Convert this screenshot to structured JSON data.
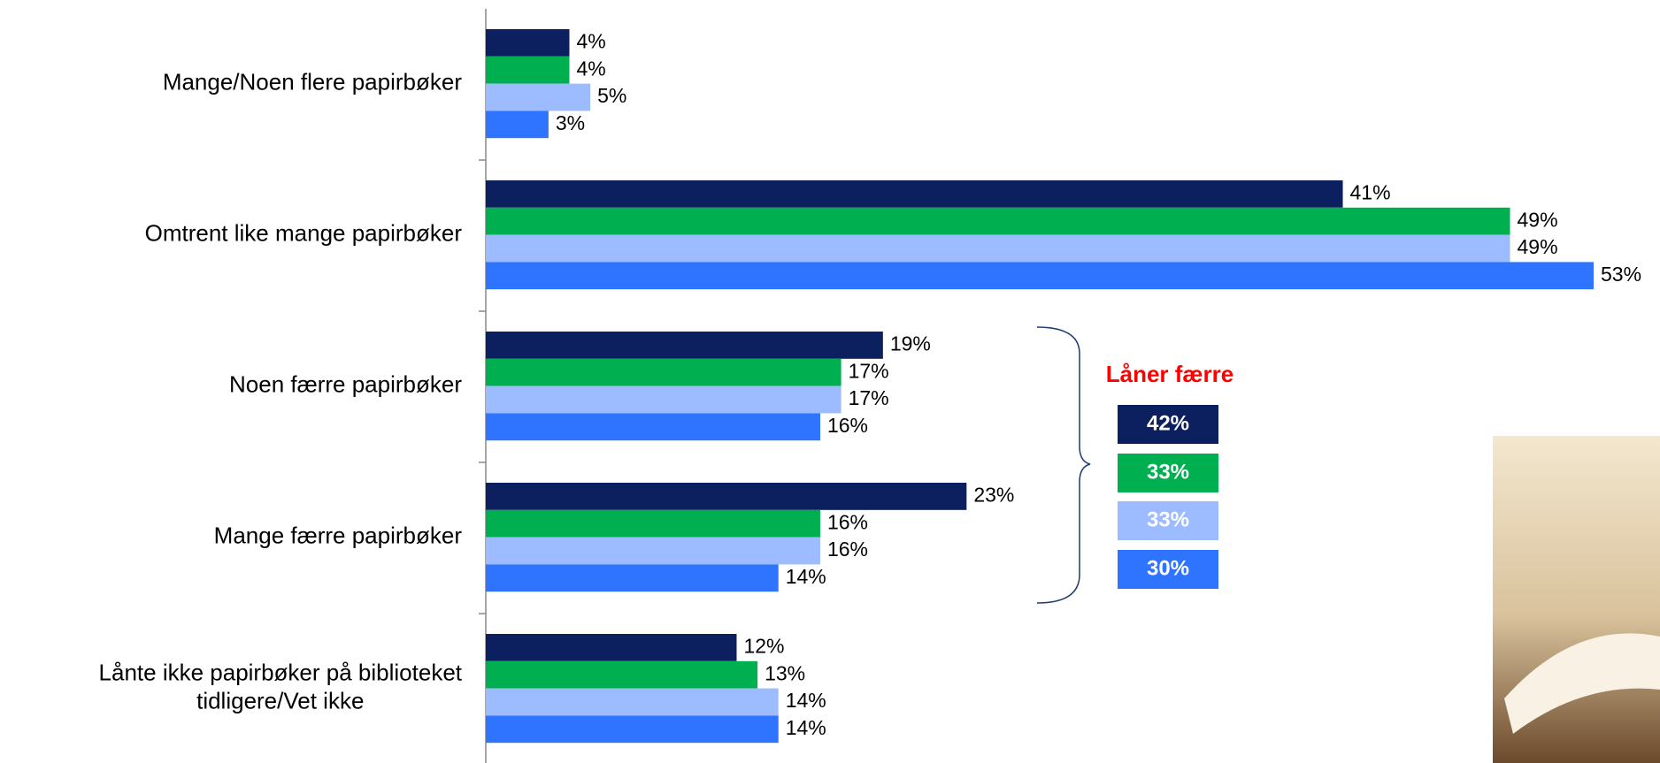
{
  "chart_data": {
    "type": "bar",
    "orientation": "horizontal",
    "categories": [
      "Mange/Noen flere papirbøker",
      "Omtrent like mange papirbøker",
      "Noen færre papirbøker",
      "Mange færre papirbøker",
      "Lånte ikke papirbøker på biblioteket\ntidligere/Vet ikke"
    ],
    "series": [
      {
        "color": "#0c1f5e",
        "values": [
          4,
          41,
          19,
          23,
          12
        ],
        "value_labels": [
          "4%",
          "41%",
          "19%",
          "23%",
          "12%"
        ]
      },
      {
        "color": "#00b050",
        "values": [
          4,
          49,
          17,
          16,
          13
        ],
        "value_labels": [
          "4%",
          "49%",
          "17%",
          "16%",
          "13%"
        ]
      },
      {
        "color": "#9dbcff",
        "values": [
          5,
          49,
          17,
          16,
          14
        ],
        "value_labels": [
          "5%",
          "49%",
          "17%",
          "16%",
          "14%"
        ]
      },
      {
        "color": "#2f74ff",
        "values": [
          3,
          53,
          16,
          14,
          14
        ],
        "value_labels": [
          "3%",
          "53%",
          "16%",
          "14%",
          "14%"
        ]
      }
    ],
    "annotation": {
      "title": "Låner færre",
      "color": "#ff0000",
      "values": [
        42,
        33,
        33,
        30
      ],
      "value_labels": [
        "42%",
        "33%",
        "33%",
        "30%"
      ]
    }
  }
}
